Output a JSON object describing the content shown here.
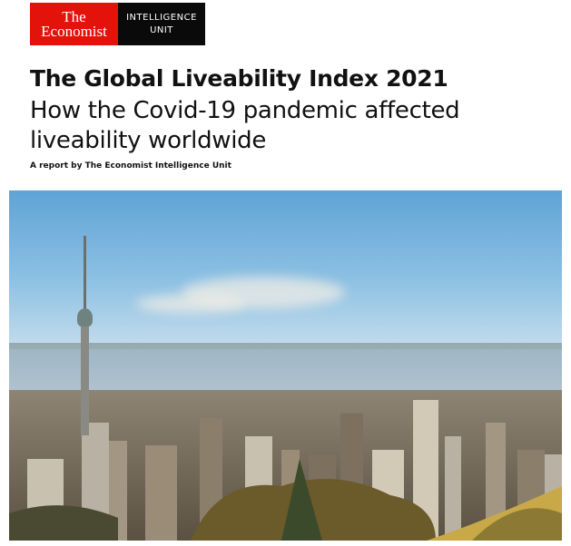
{
  "logo": {
    "line1": "The",
    "line2": "Economist",
    "unit_line1": "INTELLIGENCE",
    "unit_line2": "UNIT",
    "red": "#e3120b",
    "black": "#0a0a0a"
  },
  "cover": {
    "title": "The Global Liveability Index 2021",
    "subtitle_line1": "How the Covid-19 pandemic affected",
    "subtitle_line2": "liveability worldwide",
    "byline": "A report by The Economist Intelligence Unit"
  }
}
